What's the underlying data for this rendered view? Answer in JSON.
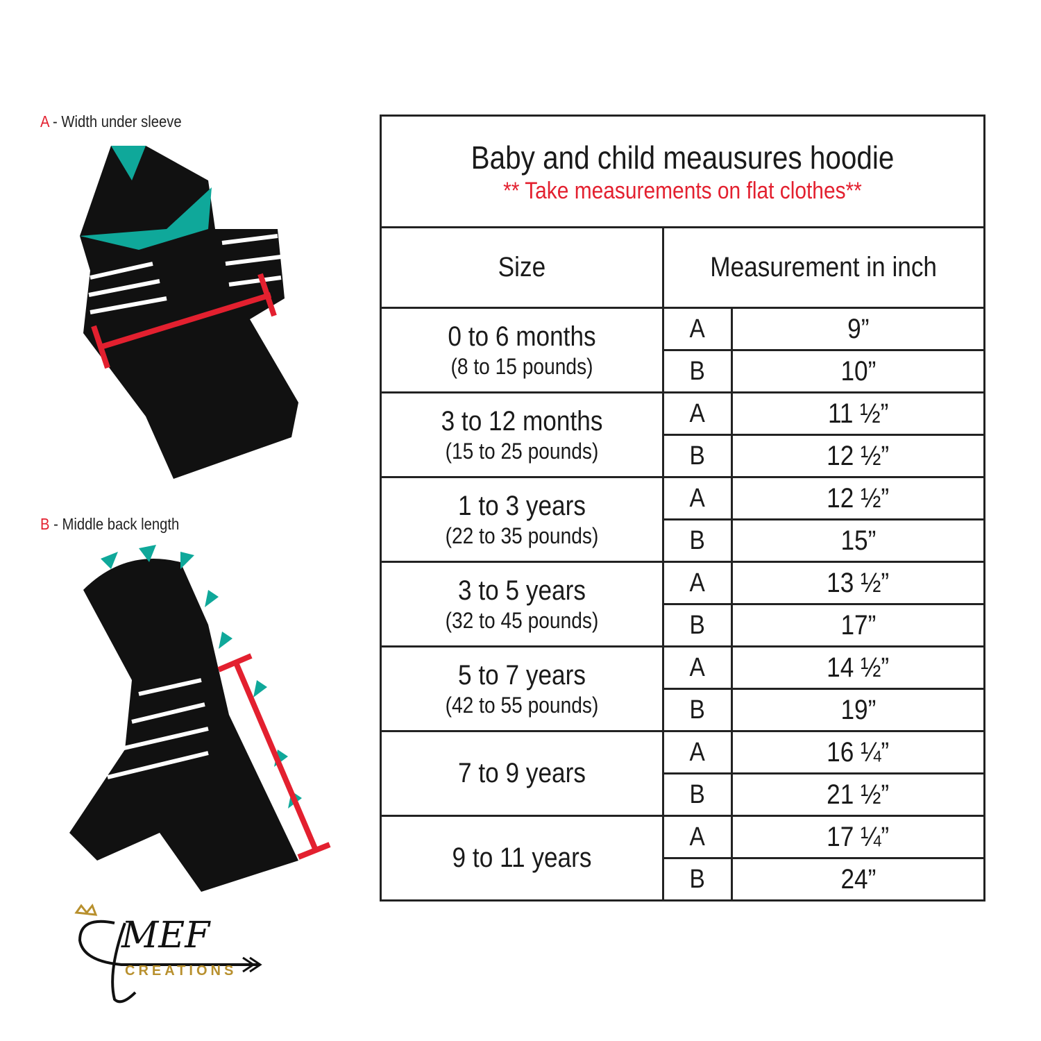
{
  "labels": {
    "a_key": "A",
    "a_text": " - Width under sleeve",
    "b_key": "B",
    "b_text": " - Middle back length"
  },
  "table": {
    "title": "Baby and child meausures hoodie",
    "subtitle": "** Take measurements on flat clothes**",
    "col_size": "Size",
    "col_measure": "Measurement in inch",
    "rows": [
      {
        "size": "0 to 6 months",
        "weight": "(8 to 15 pounds)",
        "a": "9”",
        "b": "10”"
      },
      {
        "size": "3 to 12 months",
        "weight": "(15 to 25 pounds)",
        "a": "11 ½”",
        "b": "12 ½”"
      },
      {
        "size": "1 to 3 years",
        "weight": "(22 to 35 pounds)",
        "a": "12 ½”",
        "b": "15”"
      },
      {
        "size": "3 to 5 years",
        "weight": "(32 to 45 pounds)",
        "a": "13 ½”",
        "b": "17”"
      },
      {
        "size": "5 to 7 years",
        "weight": "(42 to 55 pounds)",
        "a": "14 ½”",
        "b": "19”"
      },
      {
        "size": "7 to 9 years",
        "weight": "",
        "a": "16 ¼”",
        "b": "21 ½”"
      },
      {
        "size": "9 to 11 years",
        "weight": "",
        "a": "17 ¼”",
        "b": "24”"
      }
    ],
    "letter_a": "A",
    "letter_b": "B"
  },
  "logo": {
    "script": "MEF",
    "word": "CREATIONS"
  },
  "colors": {
    "accent": "#e3202f",
    "teal": "#0fa89a",
    "gold": "#b8902e"
  }
}
